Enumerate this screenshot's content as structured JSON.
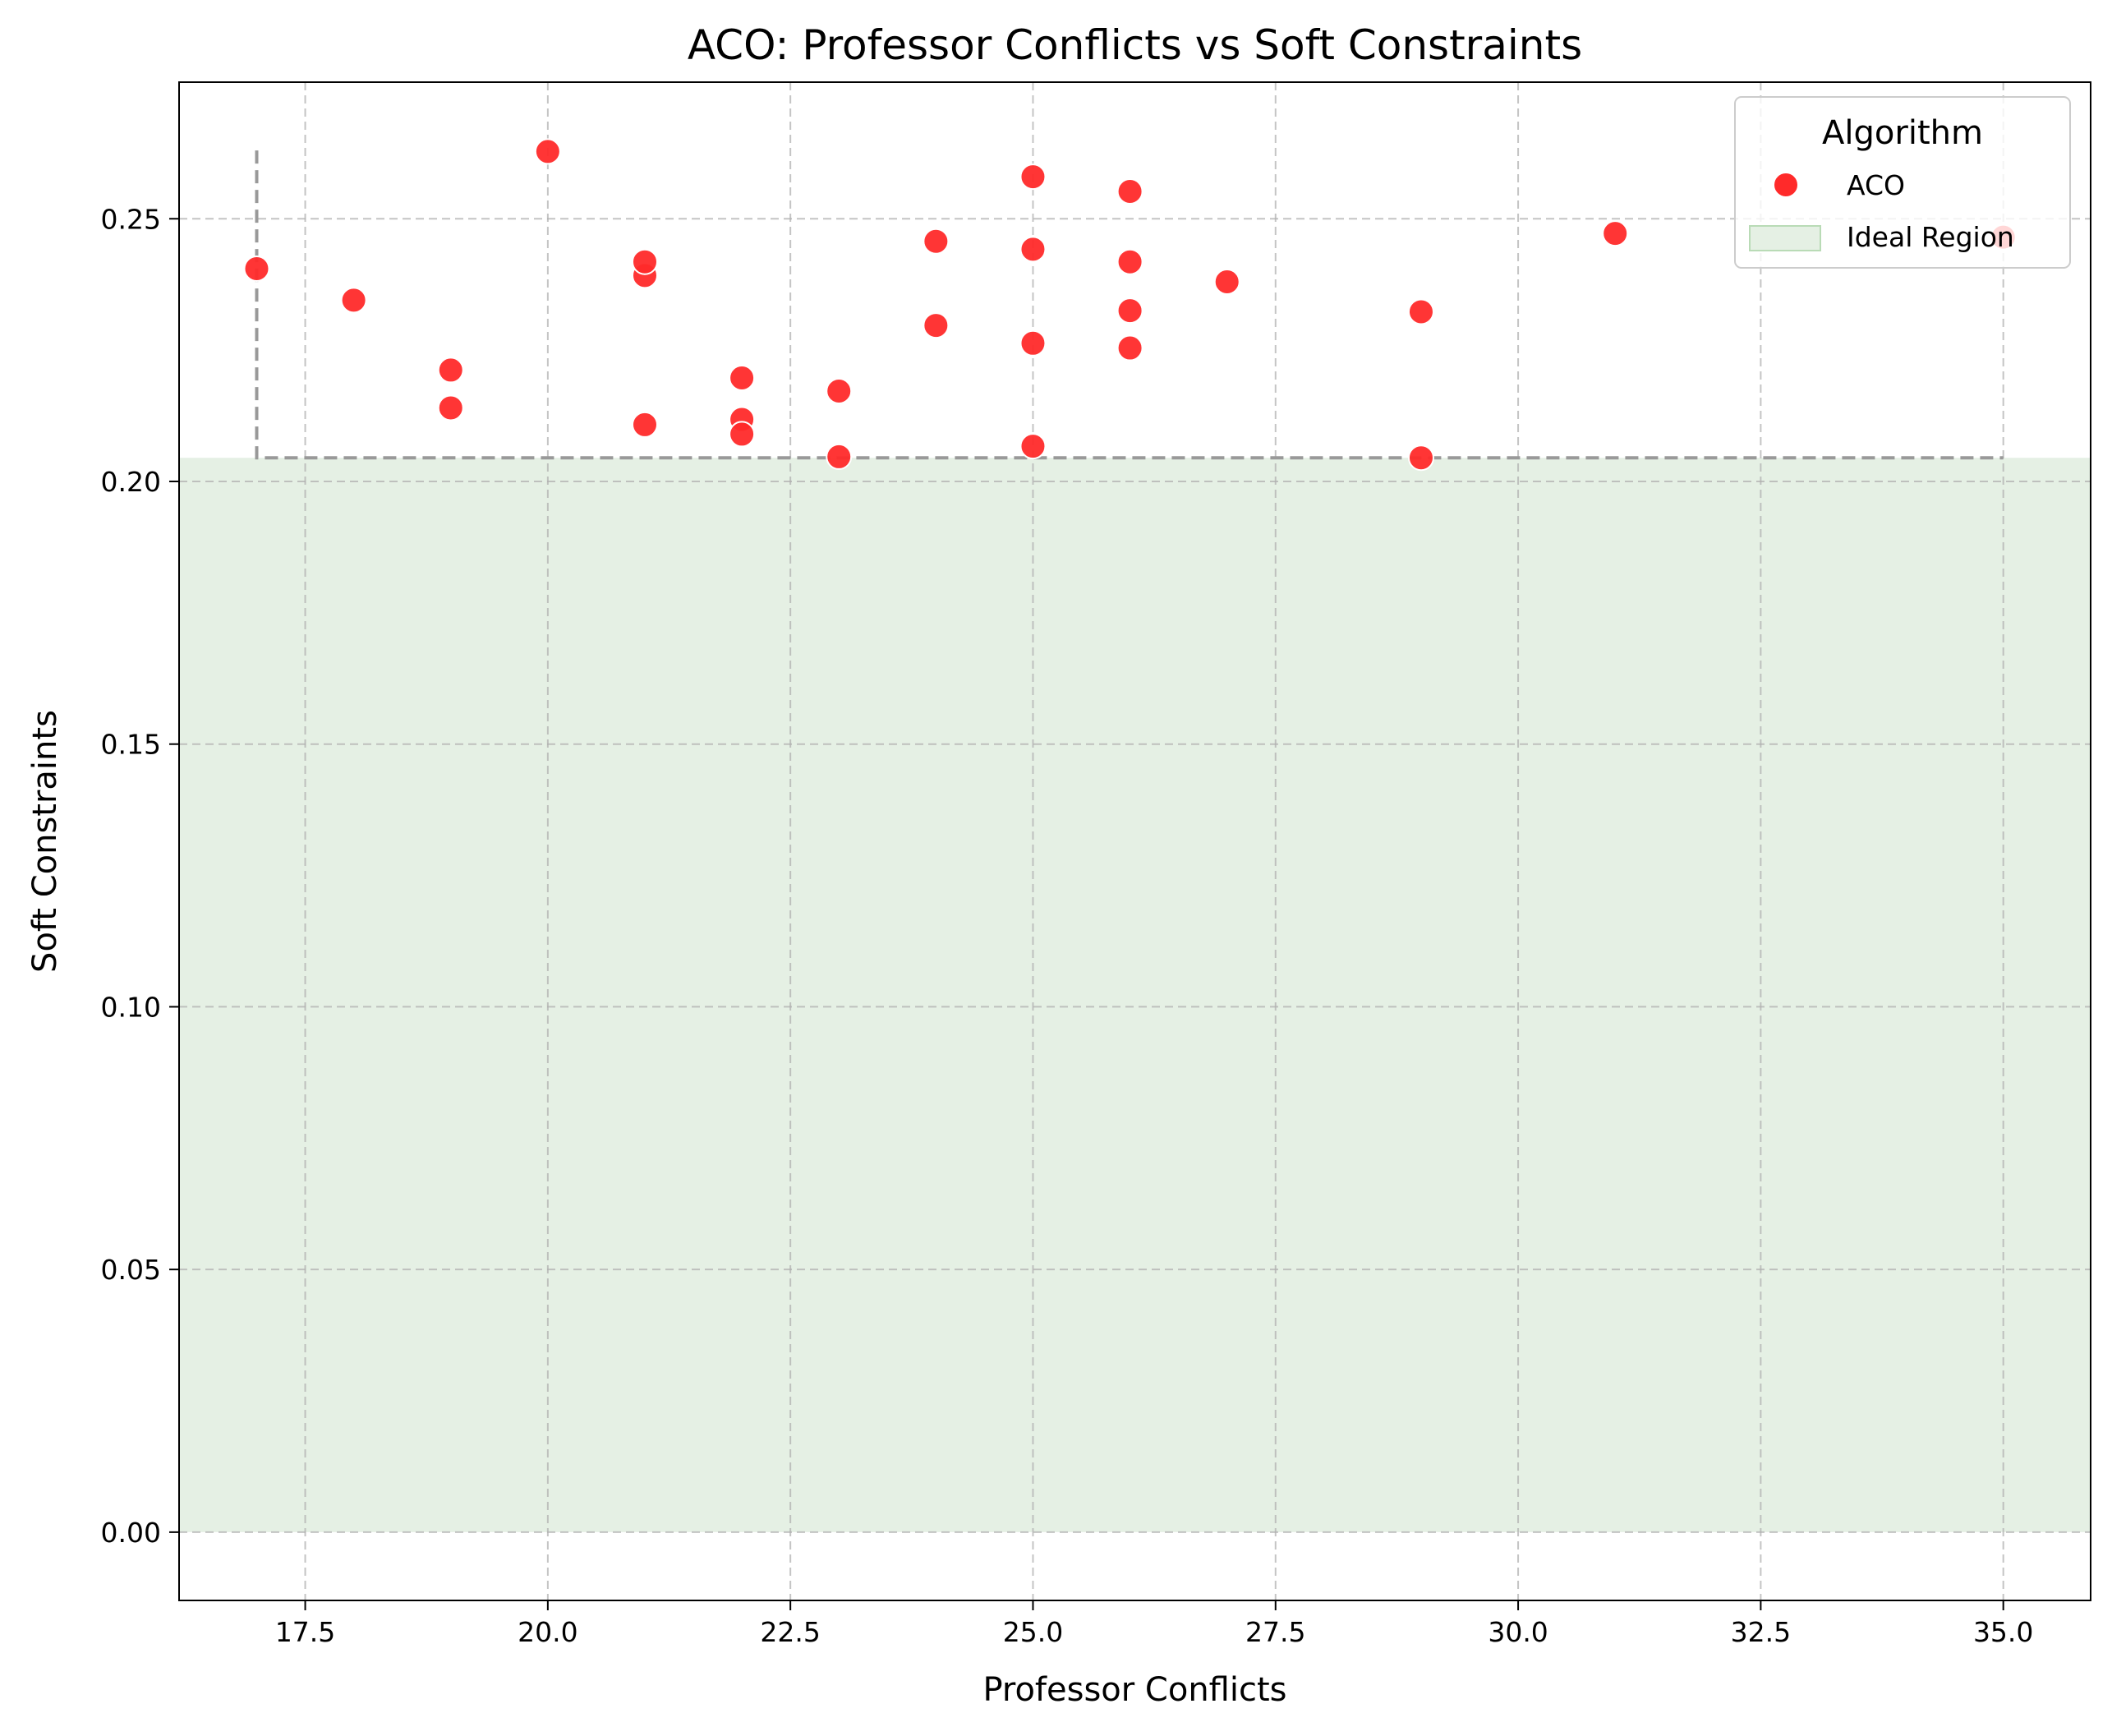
{
  "chart_data": {
    "type": "scatter",
    "title": "ACO: Professor Conflicts vs Soft Constraints",
    "xlabel": "Professor Conflicts",
    "ylabel": "Soft Constraints",
    "xlim": [
      16.2,
      35.9
    ],
    "ylim": [
      -0.013,
      0.276
    ],
    "xticks": [
      17.5,
      20.0,
      22.5,
      25.0,
      27.5,
      30.0,
      32.5,
      35.0
    ],
    "yticks": [
      0.0,
      0.05,
      0.1,
      0.15,
      0.2,
      0.25
    ],
    "xtick_labels": [
      "17.5",
      "20.0",
      "22.5",
      "25.0",
      "27.5",
      "30.0",
      "32.5",
      "35.0"
    ],
    "ytick_labels": [
      "0.00",
      "0.05",
      "0.10",
      "0.15",
      "0.20",
      "0.25"
    ],
    "grid": true,
    "legend": {
      "title": "Algorithm",
      "placement": "upper right",
      "entries": [
        "ACO",
        "Ideal Region"
      ]
    },
    "ideal_region": {
      "x_min": 16.2,
      "x_max": 35.9,
      "y_min": 0.0,
      "y_max": 0.2045,
      "color": "#e5f0e4"
    },
    "frontier_line": {
      "points": [
        [
          17,
          0.263
        ],
        [
          17,
          0.2045
        ],
        [
          35,
          0.2045
        ]
      ],
      "color": "#999999"
    },
    "series": [
      {
        "name": "ACO",
        "color": "#ff2a2a",
        "points": [
          [
            17,
            0.2405
          ],
          [
            18,
            0.2345
          ],
          [
            19,
            0.2212
          ],
          [
            19,
            0.214
          ],
          [
            20,
            0.2628
          ],
          [
            21,
            0.2392
          ],
          [
            21,
            0.2418
          ],
          [
            21,
            0.2108
          ],
          [
            22,
            0.2197
          ],
          [
            22,
            0.2118
          ],
          [
            22,
            0.209
          ],
          [
            23,
            0.2172
          ],
          [
            23,
            0.2047
          ],
          [
            24,
            0.2457
          ],
          [
            24,
            0.2297
          ],
          [
            25,
            0.258
          ],
          [
            25,
            0.2442
          ],
          [
            25,
            0.2263
          ],
          [
            25,
            0.2067
          ],
          [
            26,
            0.2552
          ],
          [
            26,
            0.2418
          ],
          [
            26,
            0.2325
          ],
          [
            26,
            0.2254
          ],
          [
            27,
            0.238
          ],
          [
            29,
            0.2323
          ],
          [
            29,
            0.2045
          ],
          [
            31,
            0.2472
          ],
          [
            35,
            0.2465
          ]
        ]
      }
    ]
  }
}
